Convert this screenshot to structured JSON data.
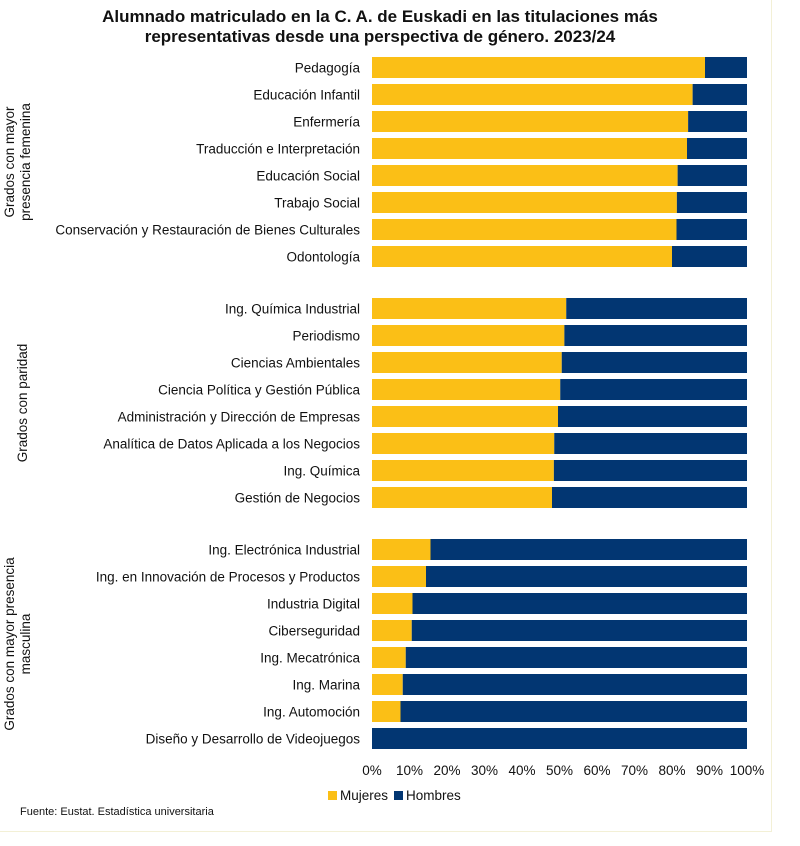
{
  "chart_data": {
    "type": "bar",
    "orientation": "horizontal",
    "stacked": "percent",
    "title_line1": "Alumnado matriculado en la C. A. de Euskadi en las titulaciones más",
    "title_line2": "representativas desde una perspectiva de género. 2023/24",
    "xlim": [
      0,
      100
    ],
    "x_ticks": [
      "0%",
      "10%",
      "20%",
      "30%",
      "40%",
      "50%",
      "60%",
      "70%",
      "80%",
      "90%",
      "100%"
    ],
    "legend_position": "bottom",
    "series": [
      {
        "name": "Mujeres",
        "color": "#fbbf16"
      },
      {
        "name": "Hombres",
        "color": "#023672"
      }
    ],
    "groups": [
      {
        "label_lines": [
          "Grados con mayor",
          "presencia femenina"
        ],
        "categories": [
          "Pedagogía",
          "Educación Infantil",
          "Enfermería",
          "Traducción e Interpretación",
          "Educación Social",
          "Trabajo Social",
          "Conservación y Restauración de Bienes Culturales",
          "Odontología"
        ],
        "mujeres": [
          88.8,
          85.5,
          84.3,
          84.0,
          81.5,
          81.3,
          81.2,
          80.0
        ]
      },
      {
        "label_lines": [
          "Grados con paridad"
        ],
        "categories": [
          "Ing. Química Industrial",
          "Periodismo",
          "Ciencias Ambientales",
          "Ciencia Política y Gestión Pública",
          "Administración y Dirección de Empresas",
          "Analítica de Datos Aplicada a los Negocios",
          "Ing. Química",
          "Gestión de Negocios"
        ],
        "mujeres": [
          51.8,
          51.3,
          50.6,
          50.2,
          49.6,
          48.6,
          48.5,
          48.0
        ]
      },
      {
        "label_lines": [
          "Grados con mayor presencia",
          "masculina"
        ],
        "categories": [
          "Ing. Electrónica Industrial",
          "Ing. en Innovación de Procesos y Productos",
          "Industria Digital",
          "Ciberseguridad",
          "Ing. Mecatrónica",
          "Ing. Marina",
          "Ing. Automoción",
          "Diseño y Desarrollo de Videojuegos"
        ],
        "mujeres": [
          15.6,
          14.4,
          10.8,
          10.6,
          9.0,
          8.2,
          7.6,
          0.0
        ]
      }
    ]
  },
  "source": "Fuente: Eustat. Estadística universitaria"
}
